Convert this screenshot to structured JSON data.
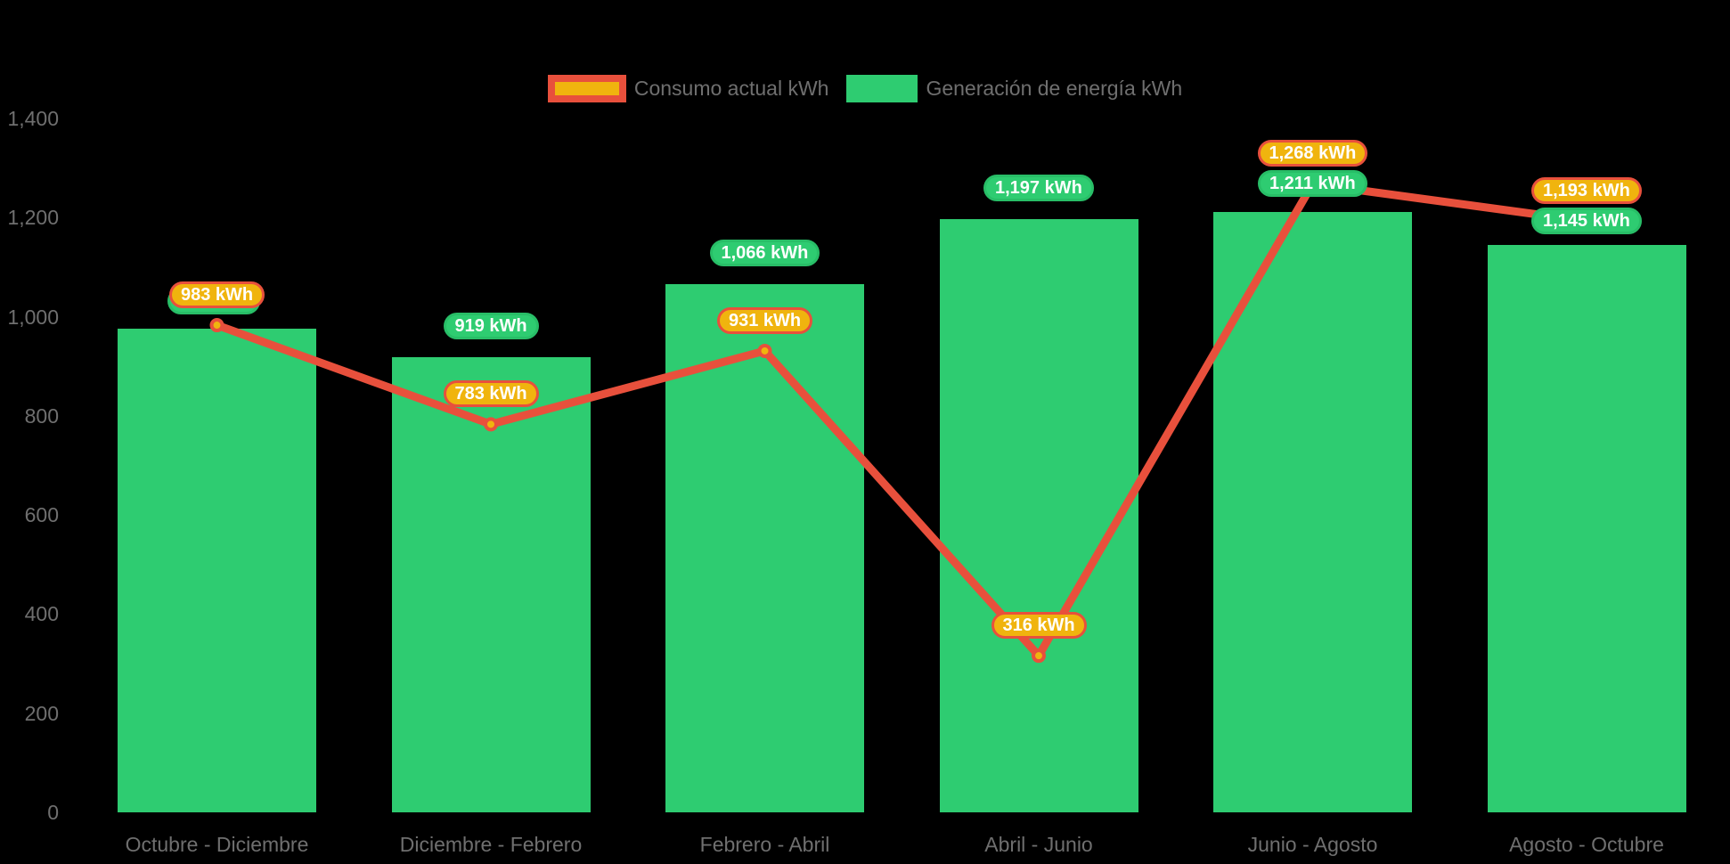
{
  "legend": {
    "consumption_label": "Consumo actual kWh",
    "generation_label": "Generación de energía kWh"
  },
  "colors": {
    "background": "#000000",
    "bar_green": "#2ecc71",
    "green_pill_border": "#28be67",
    "line_red": "#e8503c",
    "pill_gold": "#f0b40e",
    "axis_text": "#6f6f6f",
    "pill_text": "#ffffff"
  },
  "chart_data": {
    "type": "bar",
    "title": "",
    "categories": [
      "Octubre - Diciembre",
      "Diciembre - Febrero",
      "Febrero - Abril",
      "Abril - Junio",
      "Junio - Agosto",
      "Agosto - Octubre"
    ],
    "series": [
      {
        "name": "Consumo actual kWh",
        "type": "line",
        "color_role": "red",
        "values": [
          983,
          783,
          931,
          316,
          1268,
          1193
        ],
        "labels": [
          "983 kWh",
          "783 kWh",
          "931 kWh",
          "316 kWh",
          "1,268 kWh",
          "1,193 kWh"
        ]
      },
      {
        "name": "Generación de energía kWh",
        "type": "bar",
        "color_role": "green",
        "values": [
          975,
          919,
          1066,
          1197,
          1211,
          1145
        ],
        "labels": [
          "",
          "919 kWh",
          "1,066 kWh",
          "1,197 kWh",
          "1,211 kWh",
          "1,145 kWh"
        ],
        "label_hidden_behind_consumption": [
          true,
          false,
          false,
          false,
          false,
          false
        ]
      }
    ],
    "ylim": [
      0,
      1400
    ],
    "yticks": [
      {
        "value": 0,
        "label": "0"
      },
      {
        "value": 200,
        "label": "200"
      },
      {
        "value": 400,
        "label": "400"
      },
      {
        "value": 600,
        "label": "600"
      },
      {
        "value": 800,
        "label": "800"
      },
      {
        "value": 1000,
        "label": "1,000"
      },
      {
        "value": 1200,
        "label": "1,200"
      },
      {
        "value": 1400,
        "label": "1,400"
      }
    ],
    "grid": false,
    "legend_position": "top-center",
    "xlabel": "",
    "ylabel": ""
  }
}
